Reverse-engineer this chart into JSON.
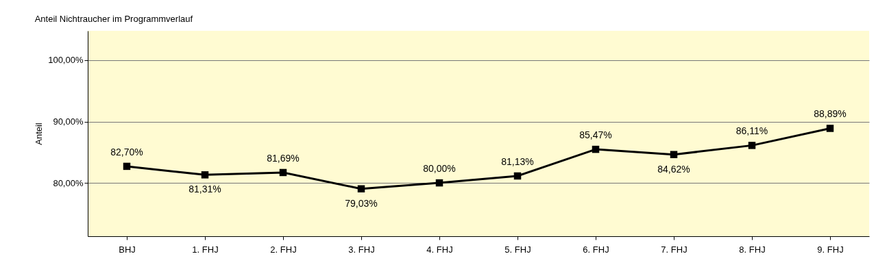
{
  "chart_data": {
    "type": "line",
    "title": "Anteil Nichtraucher im Programmverlauf",
    "ylabel": "Anteil",
    "categories": [
      "BHJ",
      "1. FHJ",
      "2. FHJ",
      "3. FHJ",
      "4. FHJ",
      "5. FHJ",
      "6. FHJ",
      "7. FHJ",
      "8. FHJ",
      "9. FHJ"
    ],
    "series": [
      {
        "color": "#000000",
        "values": [
          82.7,
          81.31,
          81.69,
          79.03,
          80.0,
          81.13,
          85.47,
          84.62,
          86.11,
          88.89
        ],
        "value_labels": [
          "82,70%",
          "81,31%",
          "81,69%",
          "79,03%",
          "80,00%",
          "81,13%",
          "85,47%",
          "84,62%",
          "86,11%",
          "88,89%"
        ]
      }
    ],
    "ylim": [
      71.3,
      104.8
    ],
    "yticks": [
      {
        "value": 80,
        "label": "80,00%"
      },
      {
        "value": 90,
        "label": "90,00%"
      },
      {
        "value": 100,
        "label": "100,00%"
      }
    ],
    "grid": "y",
    "marker": "square",
    "line_style": "solid"
  }
}
